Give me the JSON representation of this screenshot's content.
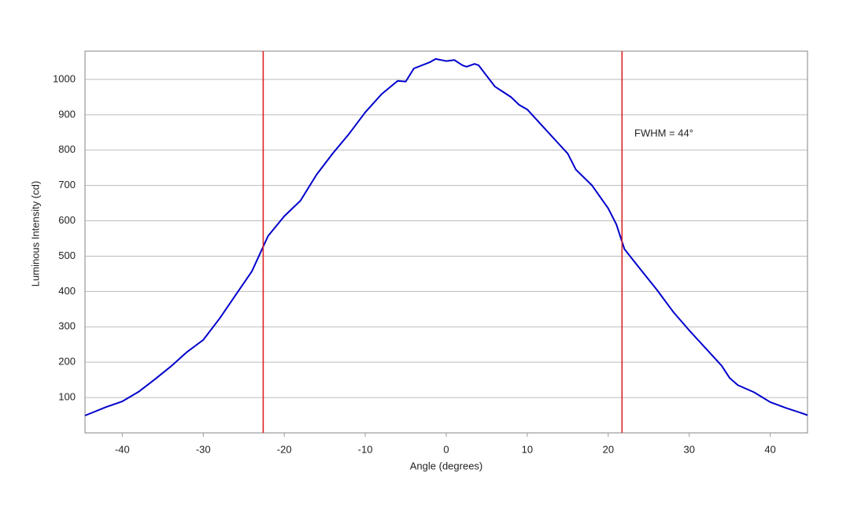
{
  "chart_data": {
    "type": "line",
    "x_label": "Angle (degrees)",
    "y_label": "Luminous Intensity (cd)",
    "annotation": "FWHM = 44°",
    "x": [
      -44.6,
      -42,
      -40,
      -38,
      -36,
      -34,
      -32,
      -30,
      -28,
      -26,
      -24,
      -22,
      -20,
      -18,
      -16,
      -14,
      -12,
      -10,
      -8,
      -6,
      -5,
      -4,
      -2,
      -1.3,
      0,
      1,
      2,
      2.5,
      3.5,
      4,
      5,
      6,
      8,
      9,
      10,
      12,
      14,
      15,
      16,
      18,
      20,
      21,
      22,
      24,
      26,
      28,
      30,
      32,
      34,
      35,
      36,
      38,
      40,
      42,
      44,
      44.6
    ],
    "series": [
      {
        "color": "#0000cc",
        "values": [
          49,
          73,
          89,
          116,
          151,
          188,
          229,
          263,
          323,
          390,
          457,
          557,
          613,
          657,
          731,
          791,
          846,
          907,
          958,
          996,
          994,
          1031,
          1049,
          1058,
          1052,
          1055,
          1040,
          1036,
          1044,
          1040,
          1010,
          980,
          950,
          928,
          915,
          865,
          815,
          790,
          745,
          700,
          635,
          590,
          520,
          462,
          405,
          343,
          290,
          240,
          190,
          155,
          135,
          115,
          87,
          70,
          55,
          50
        ]
      }
    ],
    "vlines": [
      -22.6,
      21.7
    ],
    "vline_color": "#dd2222",
    "xlim": [
      -44.6,
      44.6
    ],
    "ylim": [
      0,
      1080
    ],
    "xticks": [
      -40,
      -30,
      -20,
      -10,
      0,
      10,
      20,
      30,
      40
    ],
    "yticks": [
      100,
      200,
      300,
      400,
      500,
      600,
      700,
      800,
      900,
      1000
    ],
    "grid": true
  }
}
